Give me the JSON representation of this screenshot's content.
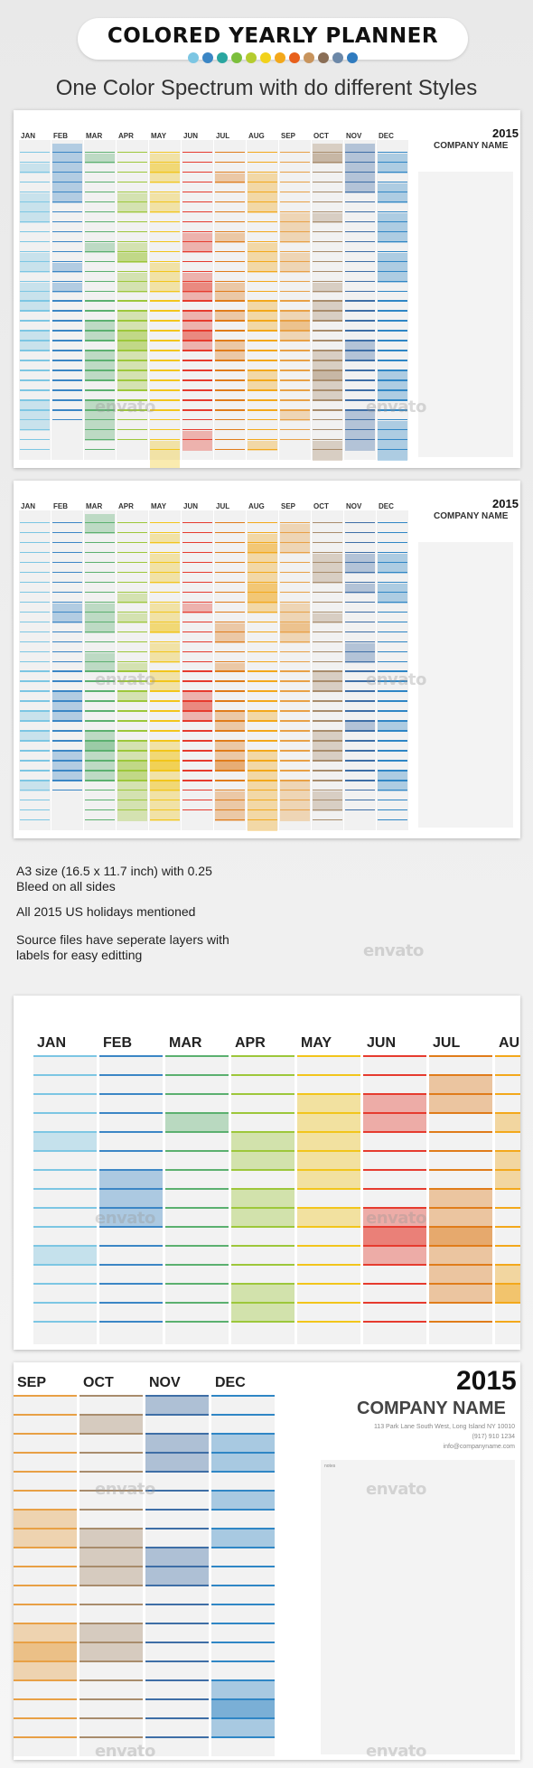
{
  "header": {
    "title": "COLORED YEARLY PLANNER",
    "subtitle": "One Color Spectrum with do different Styles",
    "dot_colors": [
      "#7cc6e3",
      "#3b86c5",
      "#2aa6a0",
      "#7bbf3c",
      "#b5cc2f",
      "#f2d21b",
      "#f3a81b",
      "#e8601c",
      "#c8945d",
      "#8a6e56",
      "#6c88a8",
      "#2f7bbf"
    ]
  },
  "months": [
    "JAN",
    "FEB",
    "MAR",
    "APR",
    "MAY",
    "JUN",
    "JUL",
    "AUG",
    "SEP",
    "OCT",
    "NOV",
    "DEC"
  ],
  "month_colors": [
    "#7cc6e3",
    "#3b86c5",
    "#5bb06f",
    "#9dc73a",
    "#f2c51b",
    "#e63b2e",
    "#e07c1a",
    "#f3a81b",
    "#e8a045",
    "#a88c6c",
    "#3e6ea6",
    "#2f86c5"
  ],
  "planner": {
    "year": "2015",
    "company": "COMPANY NAME",
    "address_lines": [
      "113 Park Lane South West, Long Island NY 10010",
      "(917) 910 1234",
      "info@companyname.com"
    ],
    "notes_label": "notes"
  },
  "info": {
    "line1": "A3 size (16.5 x 11.7 inch) with 0.25",
    "line2": "Bleed on all sides",
    "line3": "All 2015 US holidays mentioned",
    "line4": "Source files have seperate layers with",
    "line5": "labels for easy editting"
  },
  "watermark": "envato",
  "zoom_left": {
    "months": [
      "JAN",
      "FEB",
      "MAR",
      "APR",
      "MAY",
      "JUN",
      "JUL",
      "AU"
    ]
  },
  "zoom_right": {
    "months": [
      "SEP",
      "OCT",
      "NOV",
      "DEC"
    ]
  }
}
